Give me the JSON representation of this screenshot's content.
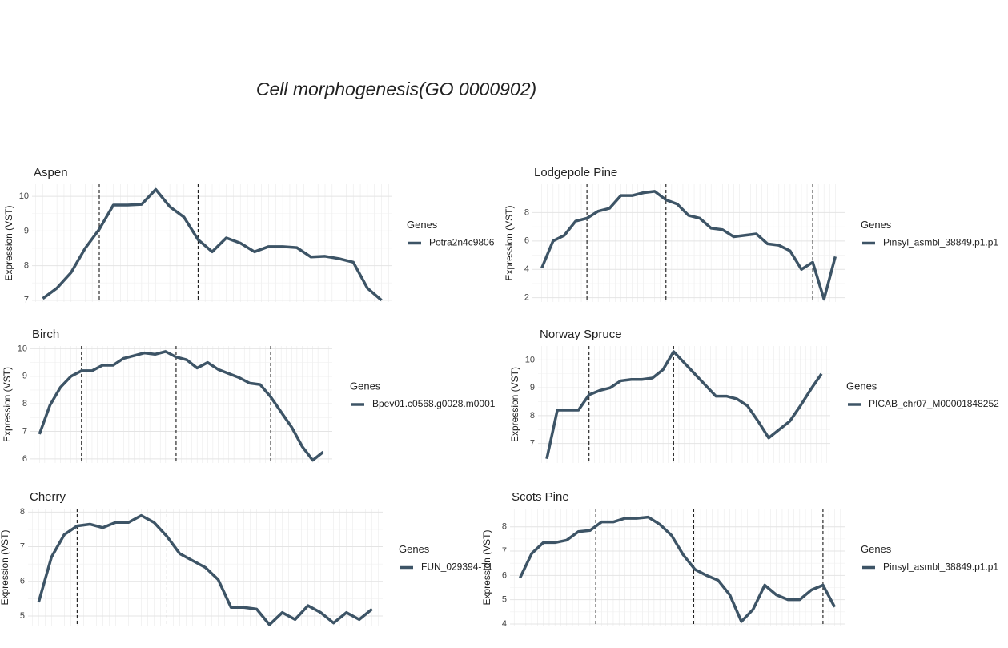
{
  "title": "Cell morphogenesis(GO 0000902)",
  "chart_data": [
    {
      "type": "line",
      "title": "Aspen",
      "ylabel": "Expression (VST)",
      "legend_title": "Genes",
      "categories": [
        null,
        null,
        null,
        null,
        null,
        null,
        null,
        null,
        null,
        null,
        null,
        null,
        null,
        null,
        null,
        null,
        null,
        null,
        null,
        null,
        null,
        null,
        null,
        null,
        null
      ],
      "series": [
        {
          "name": "Potra2n4c9806",
          "color": "#3d5466",
          "values": [
            7.05,
            7.35,
            7.8,
            8.5,
            9.05,
            9.75,
            9.75,
            9.77,
            10.2,
            9.7,
            9.4,
            8.75,
            8.4,
            8.8,
            8.65,
            8.4,
            8.55,
            8.55,
            8.52,
            8.25,
            8.27,
            8.2,
            8.1,
            7.35,
            7.0
          ]
        }
      ],
      "vlines": [
        4,
        11
      ],
      "ylim": [
        6.95,
        10.35
      ],
      "yticks": [
        7,
        8,
        9,
        10
      ],
      "grid": true
    },
    {
      "type": "line",
      "title": "Lodgepole Pine",
      "ylabel": "Expression (VST)",
      "legend_title": "Genes",
      "categories": [
        null,
        null,
        null,
        null,
        null,
        null,
        null,
        null,
        null,
        null,
        null,
        null,
        null,
        null,
        null,
        null,
        null,
        null,
        null,
        null,
        null,
        null,
        null,
        null,
        null,
        null,
        null
      ],
      "series": [
        {
          "name": "Pinsyl_asmbl_38849.p1.p1",
          "color": "#3d5466",
          "values": [
            4.1,
            6.0,
            6.4,
            7.4,
            7.6,
            8.1,
            8.3,
            9.2,
            9.2,
            9.4,
            9.5,
            8.9,
            8.6,
            7.8,
            7.6,
            6.9,
            6.8,
            6.3,
            6.4,
            6.5,
            5.8,
            5.7,
            5.3,
            4.0,
            4.5,
            1.9,
            4.9
          ]
        }
      ],
      "vlines": [
        4,
        11,
        24
      ],
      "ylim": [
        1.7,
        10.0
      ],
      "yticks": [
        2,
        4,
        6,
        8
      ],
      "grid": true
    },
    {
      "type": "line",
      "title": "Birch",
      "ylabel": "Expression (VST)",
      "legend_title": "Genes",
      "categories": [
        null,
        null,
        null,
        null,
        null,
        null,
        null,
        null,
        null,
        null,
        null,
        null,
        null,
        null,
        null,
        null,
        null,
        null,
        null,
        null,
        null,
        null,
        null,
        null,
        null,
        null,
        null,
        null
      ],
      "series": [
        {
          "name": "Bpev01.c0568.g0028.m0001",
          "color": "#3d5466",
          "values": [
            6.9,
            7.95,
            8.6,
            9.0,
            9.2,
            9.2,
            9.4,
            9.4,
            9.65,
            9.75,
            9.85,
            9.8,
            9.9,
            9.7,
            9.6,
            9.3,
            9.5,
            9.25,
            9.1,
            8.95,
            8.75,
            8.7,
            8.25,
            7.7,
            7.15,
            6.45,
            5.95,
            6.25
          ]
        }
      ],
      "vlines": [
        4,
        13,
        22
      ],
      "ylim": [
        5.85,
        10.1
      ],
      "yticks": [
        6,
        7,
        8,
        9,
        10
      ],
      "grid": true
    },
    {
      "type": "line",
      "title": "Norway Spruce",
      "ylabel": "Expression (VST)",
      "legend_title": "Genes",
      "categories": [
        null,
        null,
        null,
        null,
        null,
        null,
        null,
        null,
        null,
        null,
        null,
        null,
        null,
        null,
        null,
        null,
        null,
        null,
        null,
        null,
        null,
        null,
        null,
        null,
        null,
        null,
        null
      ],
      "series": [
        {
          "name": "PICAB_chr07_M00001848252",
          "color": "#3d5466",
          "values": [
            6.45,
            8.2,
            8.2,
            8.2,
            8.75,
            8.9,
            9.0,
            9.25,
            9.3,
            9.3,
            9.35,
            9.65,
            10.3,
            9.9,
            9.5,
            9.1,
            8.7,
            8.7,
            8.6,
            8.35,
            7.8,
            7.2,
            7.5,
            7.8,
            8.35,
            8.95,
            9.5
          ]
        }
      ],
      "vlines": [
        4,
        12
      ],
      "ylim": [
        6.3,
        10.5
      ],
      "yticks": [
        7,
        8,
        9,
        10
      ],
      "grid": true
    },
    {
      "type": "line",
      "title": "Cherry",
      "ylabel": "Expression (VST)",
      "legend_title": "Genes",
      "categories": [
        null,
        null,
        null,
        null,
        null,
        null,
        null,
        null,
        null,
        null,
        null,
        null,
        null,
        null,
        null,
        null,
        null,
        null,
        null,
        null,
        null,
        null,
        null,
        null,
        null,
        null,
        null
      ],
      "series": [
        {
          "name": "FUN_029394-T1",
          "color": "#3d5466",
          "values": [
            5.4,
            6.7,
            7.35,
            7.6,
            7.65,
            7.55,
            7.7,
            7.7,
            7.9,
            7.7,
            7.3,
            6.8,
            6.6,
            6.4,
            6.05,
            5.25,
            5.25,
            5.2,
            4.75,
            5.1,
            4.9,
            5.3,
            5.1,
            4.8,
            5.1,
            4.9,
            5.2
          ]
        }
      ],
      "vlines": [
        3,
        10
      ],
      "ylim": [
        4.7,
        8.1
      ],
      "yticks": [
        5,
        6,
        7,
        8
      ],
      "grid": true
    },
    {
      "type": "line",
      "title": "Scots Pine",
      "ylabel": "Expression (VST)",
      "legend_title": "Genes",
      "categories": [
        null,
        null,
        null,
        null,
        null,
        null,
        null,
        null,
        null,
        null,
        null,
        null,
        null,
        null,
        null,
        null,
        null,
        null,
        null,
        null,
        null,
        null,
        null,
        null,
        null,
        null,
        null,
        null
      ],
      "series": [
        {
          "name": "Pinsyl_asmbl_38849.p1.p1",
          "color": "#3d5466",
          "values": [
            5.9,
            6.9,
            7.35,
            7.35,
            7.45,
            7.8,
            7.85,
            8.2,
            8.2,
            8.35,
            8.35,
            8.4,
            8.1,
            7.65,
            6.85,
            6.25,
            6.0,
            5.8,
            5.2,
            4.1,
            4.6,
            5.6,
            5.2,
            5.0,
            5.0,
            5.4,
            5.6,
            4.7
          ]
        }
      ],
      "vlines": [
        6.5,
        14.9,
        26
      ],
      "ylim": [
        3.9,
        8.75
      ],
      "yticks": [
        4,
        5,
        6,
        7,
        8
      ],
      "grid": true
    }
  ]
}
